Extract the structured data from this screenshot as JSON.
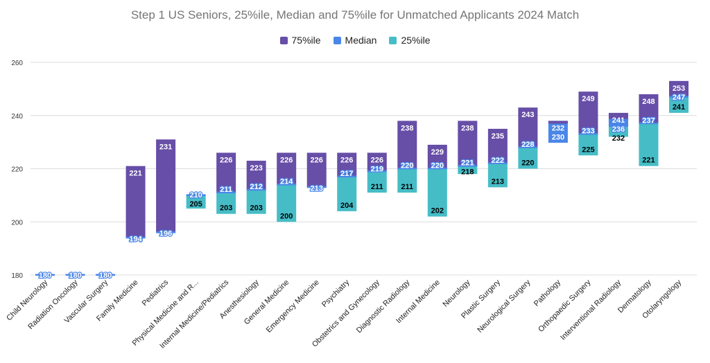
{
  "chart_data": {
    "type": "bar",
    "subtype": "stacked-floating",
    "title": "Step 1 US Seniors, 25%ile, Median and 75%ile for Unmatched Applicants 2024 Match",
    "xlabel": "",
    "ylabel": "",
    "ylim": [
      180,
      260
    ],
    "yticks": [
      180,
      200,
      220,
      240,
      260
    ],
    "grid": true,
    "legend_position": "top",
    "legend": [
      {
        "name": "75%ile",
        "color": "#674ea7"
      },
      {
        "name": "Median",
        "color": "#4a86e8"
      },
      {
        "name": "25%ile",
        "color": "#46bdc6"
      }
    ],
    "categories": [
      "Child Neurology",
      "Radiation Oncology",
      "Vascular Surgery",
      "Family Medicine",
      "Pediatrics",
      "Physical Medicine and R...",
      "Internal Medicine/Pediatrics",
      "Anesthesiology",
      "General Medicine",
      "Emergency Medicine",
      "Psychiatry",
      "Obstetrics and Gynecology",
      "Diagnostic Radiology",
      "Internal Medicine",
      "Neurology",
      "Plastic Surgery",
      "Neurological Surgery",
      "Pathology",
      "Orthopaedic Surgery",
      "Interventional Radiology",
      "Dermatology",
      "Otolaryngology"
    ],
    "series": [
      {
        "name": "25%ile",
        "values": [
          null,
          null,
          null,
          null,
          null,
          205,
          203,
          203,
          200,
          null,
          204,
          211,
          211,
          202,
          218,
          213,
          220,
          null,
          225,
          232,
          221,
          241
        ]
      },
      {
        "name": "Median",
        "values": [
          180,
          180,
          180,
          194,
          196,
          210,
          211,
          212,
          214,
          213,
          217,
          219,
          220,
          220,
          221,
          222,
          228,
          230,
          233,
          236,
          237,
          247
        ]
      },
      {
        "name": "75%ile",
        "values": [
          null,
          null,
          null,
          221,
          231,
          null,
          226,
          223,
          226,
          226,
          226,
          226,
          238,
          229,
          238,
          235,
          243,
          232,
          249,
          241,
          248,
          253
        ]
      }
    ]
  }
}
